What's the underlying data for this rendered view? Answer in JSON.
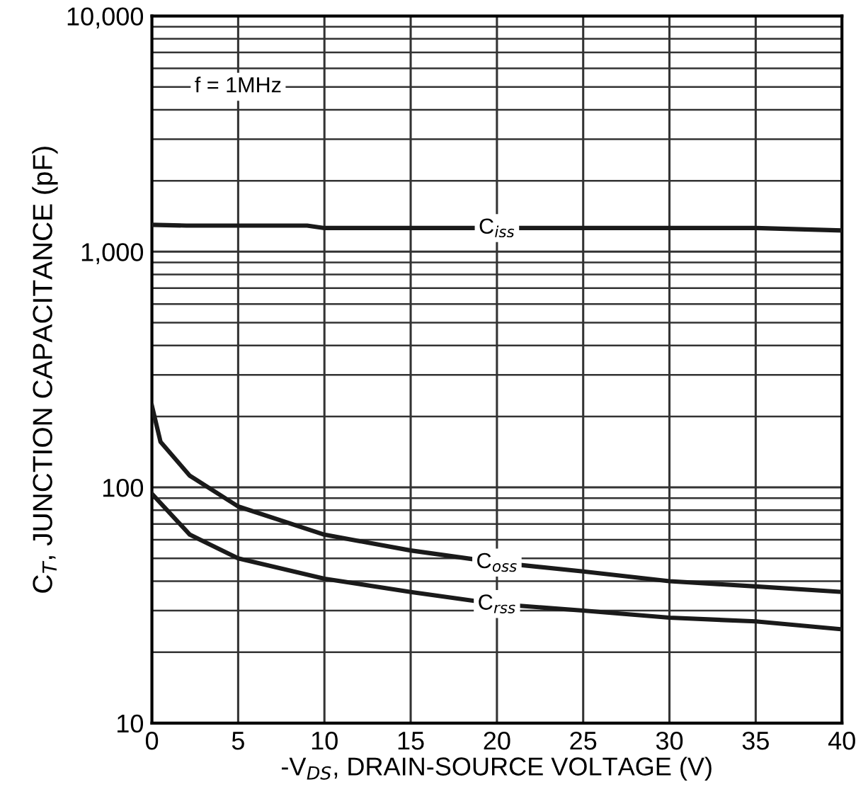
{
  "chart_data": {
    "type": "line",
    "xlabel": "-V$_{DS}$, DRAIN-SOURCE VOLTAGE (V)",
    "ylabel": "C$_{T}$, JUNCTION CAPACITANCE (pF)",
    "xlim": [
      0,
      40
    ],
    "xticks": [
      0,
      5,
      10,
      15,
      20,
      25,
      30,
      35,
      40
    ],
    "ylim": [
      10,
      10000
    ],
    "yticks": [
      10,
      100,
      {
        "value": 1000,
        "label": "1,000"
      },
      {
        "value": 10000,
        "label": "10,000"
      }
    ],
    "log": "y",
    "grid": true,
    "legend": false,
    "marker": "none",
    "line_style": "solid",
    "series": [
      {
        "name": "C$_{iss}$",
        "color": "#1a1a1a",
        "x": [
          0,
          2,
          5,
          9,
          10,
          15,
          20,
          25,
          30,
          35,
          40
        ],
        "values": [
          1300,
          1290,
          1290,
          1290,
          1260,
          1260,
          1260,
          1260,
          1260,
          1260,
          1230
        ]
      },
      {
        "name": "C$_{oss}$",
        "color": "#1a1a1a",
        "x": [
          0,
          0.5,
          2.2,
          5,
          10,
          15,
          20,
          25,
          30,
          35,
          40
        ],
        "values": [
          222,
          156,
          112,
          83,
          63,
          54,
          48,
          44,
          40,
          38,
          36
        ]
      },
      {
        "name": "C$_{rss}$",
        "color": "#1a1a1a",
        "x": [
          0,
          2.2,
          5,
          10,
          15,
          20,
          25,
          30,
          35,
          40
        ],
        "values": [
          94,
          63,
          50,
          41,
          36,
          32,
          30,
          28,
          27,
          25
        ]
      }
    ],
    "annotations": [
      "f = 1MHz"
    ]
  }
}
